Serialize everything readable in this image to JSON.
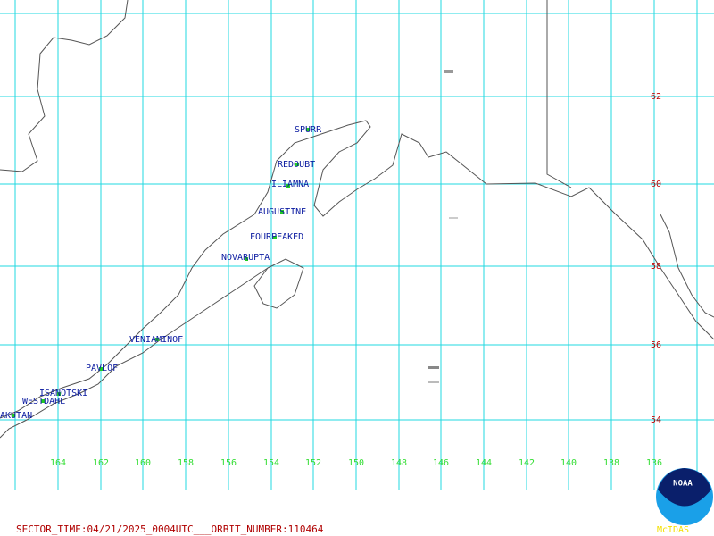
{
  "grid": {
    "lat_labels": [
      62,
      60,
      58,
      56,
      54
    ],
    "lon_labels": [
      164,
      162,
      160,
      158,
      156,
      154,
      152,
      150,
      148,
      146,
      144,
      142,
      140,
      138,
      136
    ]
  },
  "volcanoes": [
    {
      "label": "SPURR"
    },
    {
      "label": "REDOUBT"
    },
    {
      "label": "ILIAMNA"
    },
    {
      "label": "AUGUSTINE"
    },
    {
      "label": "FOURPEAKED"
    },
    {
      "label": "NOVARUPTA"
    },
    {
      "label": "VENIAMINOF"
    },
    {
      "label": "PAVLOF"
    },
    {
      "label": "ISANOTSKI"
    },
    {
      "label": "WESTDAHL"
    },
    {
      "label": "AKUTAN"
    }
  ],
  "footer": "SECTOR_TIME:04/21/2025_0004UTC___ORBIT_NUMBER:110464",
  "logo": {
    "text": "NOAA",
    "caption": "McIDAS"
  }
}
